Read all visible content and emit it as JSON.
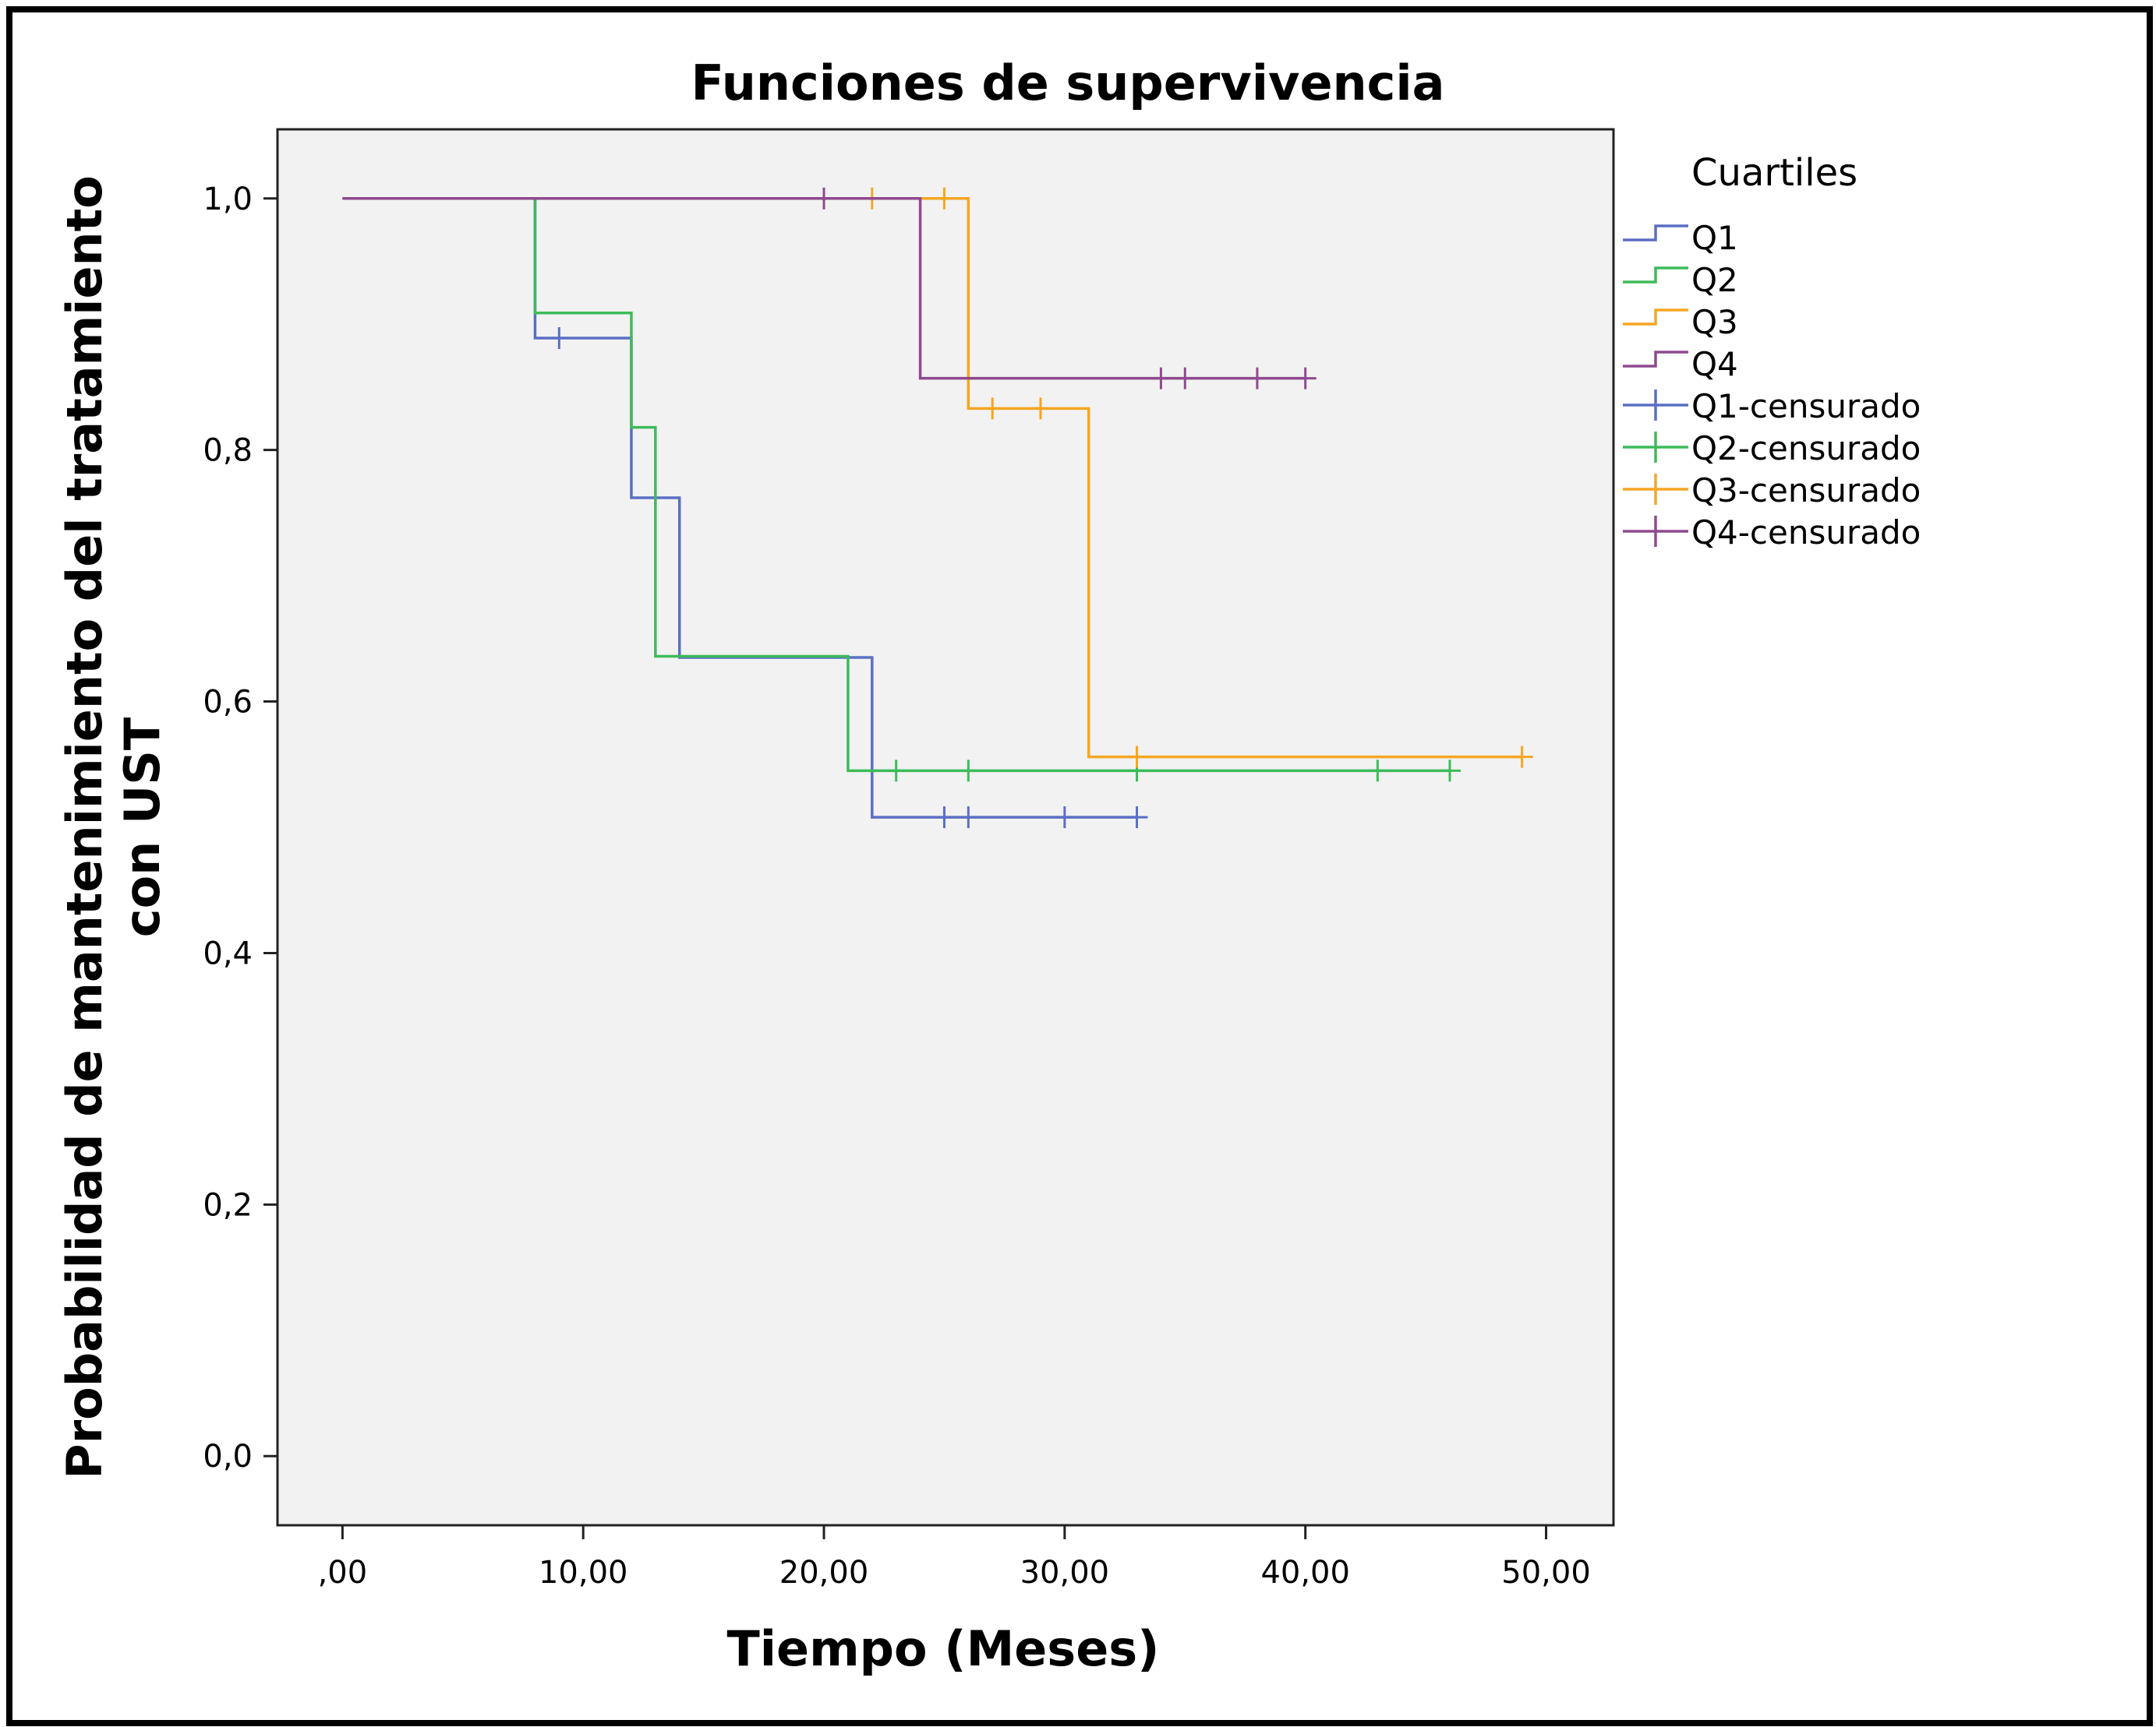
{
  "chart_data": {
    "type": "line",
    "subtype": "kaplan-meier-step",
    "title": "Funciones de supervivencia",
    "xlabel": "Tiempo (Meses)",
    "ylabel_line1": "Probabilidad de mantenimiento del tratamiento",
    "ylabel_line2": "con UST",
    "xlim": [
      -2.7,
      52.8
    ],
    "ylim": [
      -0.055,
      1.055
    ],
    "x_ticks": [
      {
        "value": 0,
        "label": ",00"
      },
      {
        "value": 10,
        "label": "10,00"
      },
      {
        "value": 20,
        "label": "20,00"
      },
      {
        "value": 30,
        "label": "30,00"
      },
      {
        "value": 40,
        "label": "40,00"
      },
      {
        "value": 50,
        "label": "50,00"
      }
    ],
    "y_ticks": [
      {
        "value": 0.0,
        "label": "0,0"
      },
      {
        "value": 0.2,
        "label": "0,2"
      },
      {
        "value": 0.4,
        "label": "0,4"
      },
      {
        "value": 0.6,
        "label": "0,6"
      },
      {
        "value": 0.8,
        "label": "0,8"
      },
      {
        "value": 1.0,
        "label": "1,0"
      }
    ],
    "grid": false,
    "plot_background": "#f2f2f2",
    "legend_title": "Cuartiles",
    "legend_position": "right",
    "series": [
      {
        "name": "Q1",
        "censored_label": "Q1-censurado",
        "color": "#5a6fc4",
        "steps": [
          [
            0,
            1.0
          ],
          [
            8,
            0.889
          ],
          [
            12,
            0.762
          ],
          [
            14,
            0.635
          ],
          [
            22,
            0.508
          ]
        ],
        "end_x": 33,
        "censored": [
          [
            9,
            0.889
          ],
          [
            25,
            0.508
          ],
          [
            26,
            0.508
          ],
          [
            30,
            0.508
          ],
          [
            33,
            0.508
          ]
        ]
      },
      {
        "name": "Q2",
        "censored_label": "Q2-censurado",
        "color": "#3dbb5a",
        "steps": [
          [
            0,
            1.0
          ],
          [
            8,
            0.909
          ],
          [
            12,
            0.818
          ],
          [
            13,
            0.636
          ],
          [
            21,
            0.545
          ]
        ],
        "end_x": 46,
        "censored": [
          [
            23,
            0.545
          ],
          [
            26,
            0.545
          ],
          [
            33,
            0.545
          ],
          [
            43,
            0.545
          ],
          [
            46,
            0.545
          ]
        ]
      },
      {
        "name": "Q3",
        "censored_label": "Q3-censurado",
        "color": "#f5a623",
        "steps": [
          [
            0,
            1.0
          ],
          [
            26,
            0.833
          ],
          [
            31,
            0.556
          ]
        ],
        "end_x": 49,
        "censored": [
          [
            22,
            1.0
          ],
          [
            25,
            1.0
          ],
          [
            27,
            0.833
          ],
          [
            29,
            0.833
          ],
          [
            33,
            0.556
          ],
          [
            49,
            0.556
          ]
        ]
      },
      {
        "name": "Q4",
        "censored_label": "Q4-censurado",
        "color": "#8e4a8e",
        "steps": [
          [
            0,
            1.0
          ],
          [
            24,
            0.857
          ]
        ],
        "end_x": 40,
        "censored": [
          [
            20,
            1.0
          ],
          [
            34,
            0.857
          ],
          [
            35,
            0.857
          ],
          [
            38,
            0.857
          ],
          [
            40,
            0.857
          ]
        ]
      }
    ]
  }
}
